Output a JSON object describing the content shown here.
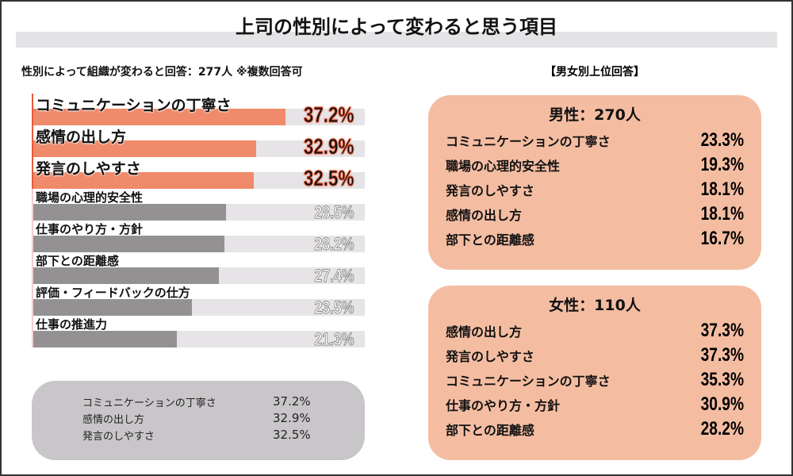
{
  "title": "上司の性別によって変わると思う項目",
  "subtitle": "性別によって組織が変わると回答：277人 ※複数回答可",
  "right_title": "【男女別上位回答】",
  "colors": {
    "highlight": "#ef8a6b",
    "other": "#949192",
    "track": "#e6e4e7",
    "box": "#f4bda2",
    "summary": "#c9c6c9"
  },
  "chart_data": {
    "type": "bar",
    "orientation": "horizontal",
    "categories": [
      "コミュニケーションの丁寧さ",
      "感情の出し方",
      "発言のしやすさ",
      "職場の心理的安全性",
      "仕事のやり方・方針",
      "部下との距離感",
      "評価・フィードバックの仕方",
      "仕事の推進力"
    ],
    "values": [
      37.2,
      32.9,
      32.5,
      28.5,
      28.2,
      27.4,
      23.5,
      21.3
    ],
    "labels": [
      "37.2%",
      "32.9%",
      "32.5%",
      "28.5%",
      "28.2%",
      "27.4%",
      "23.5%",
      "21.3%"
    ],
    "highlighted_top": 3
  },
  "summary": [
    {
      "name": "コミュニケーションの丁寧さ",
      "value": "37.2%"
    },
    {
      "name": "感情の出し方",
      "value": "32.9%"
    },
    {
      "name": "発言のしやすさ",
      "value": "32.5%"
    }
  ],
  "male": {
    "heading": "男性：270人",
    "items": [
      {
        "name": "コミュニケーションの丁寧さ",
        "value": "23.3%"
      },
      {
        "name": "職場の心理的安全性",
        "value": "19.3%"
      },
      {
        "name": "発言のしやすさ",
        "value": "18.1%"
      },
      {
        "name": "感情の出し方",
        "value": "18.1%"
      },
      {
        "name": "部下との距離感",
        "value": "16.7%"
      }
    ]
  },
  "female": {
    "heading": "女性：110人",
    "items": [
      {
        "name": "感情の出し方",
        "value": "37.3%"
      },
      {
        "name": "発言のしやすさ",
        "value": "37.3%"
      },
      {
        "name": "コミュニケーションの丁寧さ",
        "value": "35.3%"
      },
      {
        "name": "仕事のやり方・方針",
        "value": "30.9%"
      },
      {
        "name": "部下との距離感",
        "value": "28.2%"
      }
    ]
  }
}
